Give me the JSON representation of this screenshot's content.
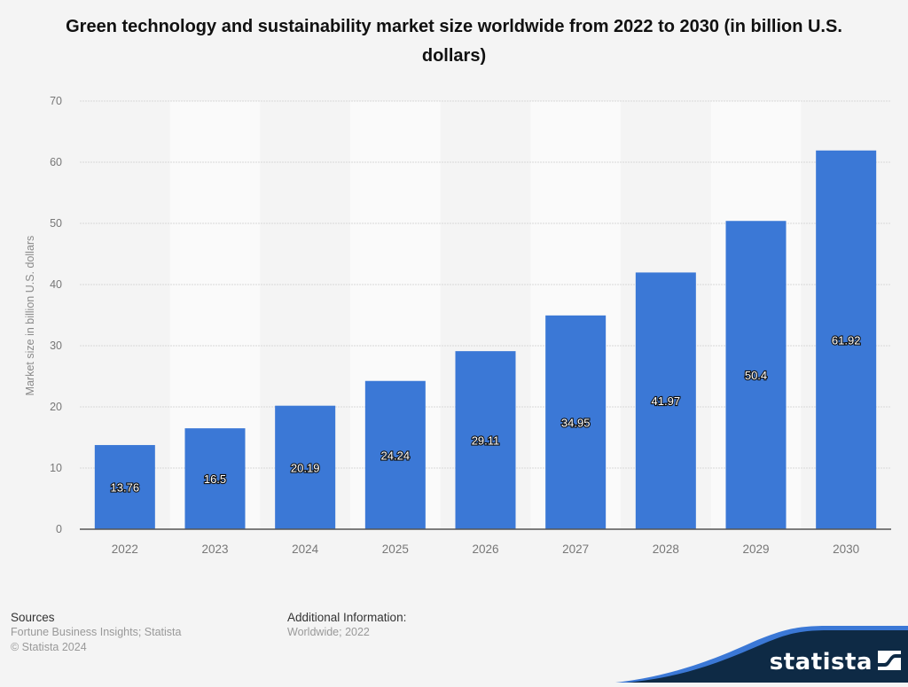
{
  "page": {
    "title": "Green technology and sustainability market size worldwide from 2022 to 2030 (in billion U.S. dollars)"
  },
  "chart_data": {
    "type": "bar",
    "title": "Green technology and sustainability market size worldwide from 2022 to 2030 (in billion U.S. dollars)",
    "xlabel": "",
    "ylabel": "Market size in billion U.S. dollars",
    "categories": [
      "2022",
      "2023",
      "2024",
      "2025",
      "2026",
      "2027",
      "2028",
      "2029",
      "2030"
    ],
    "values": [
      13.76,
      16.5,
      20.19,
      24.24,
      29.11,
      34.95,
      41.97,
      50.4,
      61.92
    ],
    "value_labels": [
      "13.76",
      "16.5",
      "20.19",
      "24.24",
      "29.11",
      "34.95",
      "41.97",
      "50.4",
      "61.92"
    ],
    "ylim": [
      0,
      70
    ],
    "yticks": [
      0,
      10,
      20,
      30,
      40,
      50,
      60,
      70
    ],
    "grid": true,
    "legend": "none",
    "colors": {
      "bar": "#3b78d6",
      "band_light": "#fafafa",
      "grid": "#d8d8d8",
      "axis": "#555555",
      "tick_text": "#777777"
    }
  },
  "footer": {
    "sources_heading": "Sources",
    "sources_text": "Fortune Business Insights; Statista",
    "copyright": "© Statista 2024",
    "additional_heading": "Additional Information:",
    "additional_text": "Worldwide; 2022"
  },
  "brand": {
    "name": "statista",
    "logo_icon": "statista-logo-icon",
    "colors": {
      "navy": "#0e2a45",
      "wave": "#3b78d6"
    }
  }
}
